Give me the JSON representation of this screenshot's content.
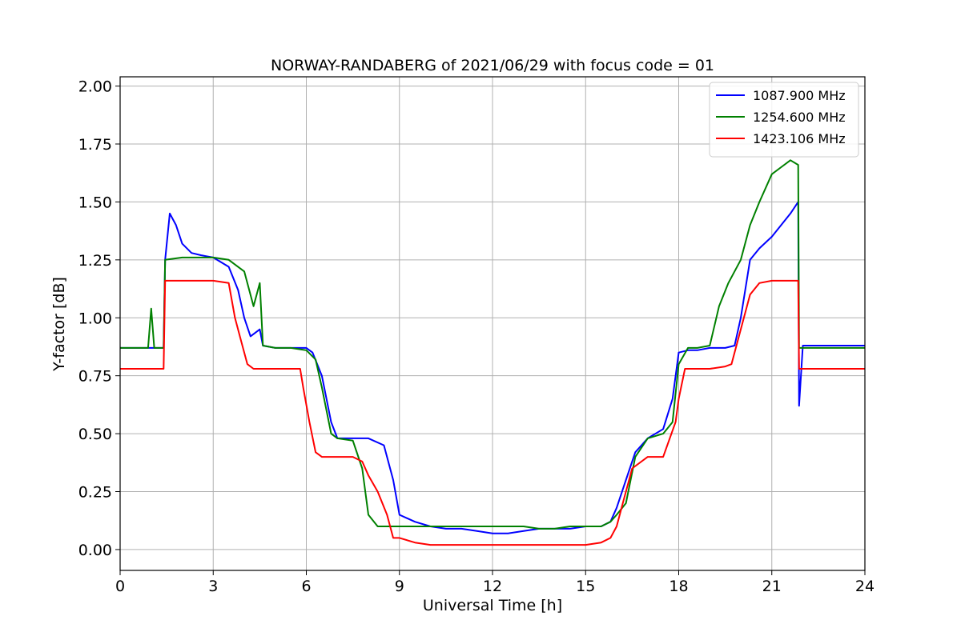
{
  "chart_data": {
    "type": "line",
    "title": "NORWAY-RANDABERG of 2021/06/29 with focus code = 01",
    "xlabel": "Universal Time [h]",
    "ylabel": "Y-factor [dB]",
    "xlim": [
      0,
      24
    ],
    "ylim": [
      -0.09,
      2.04
    ],
    "xticks": [
      0,
      3,
      6,
      9,
      12,
      15,
      18,
      21,
      24
    ],
    "xtick_labels": [
      "0",
      "3",
      "6",
      "9",
      "12",
      "15",
      "18",
      "21",
      "24"
    ],
    "yticks": [
      0.0,
      0.25,
      0.5,
      0.75,
      1.0,
      1.25,
      1.5,
      1.75,
      2.0
    ],
    "ytick_labels": [
      "0.00",
      "0.25",
      "0.50",
      "0.75",
      "1.00",
      "1.25",
      "1.50",
      "1.75",
      "2.00"
    ],
    "grid": true,
    "legend_position": "top-right",
    "series": [
      {
        "name": "1087.900 MHz",
        "color": "#0000ff",
        "x": [
          0,
          1.4,
          1.45,
          1.6,
          1.8,
          2.0,
          2.3,
          2.6,
          3.0,
          3.5,
          3.8,
          4.0,
          4.2,
          4.5,
          4.6,
          5.0,
          5.5,
          6.0,
          6.2,
          6.5,
          6.8,
          7.0,
          7.5,
          8.0,
          8.5,
          8.8,
          9.0,
          9.5,
          10.0,
          10.5,
          11.0,
          11.5,
          12.0,
          12.5,
          13.0,
          13.5,
          14.0,
          14.5,
          15.0,
          15.5,
          15.8,
          16.0,
          16.3,
          16.6,
          17.0,
          17.5,
          17.8,
          18.0,
          18.3,
          18.6,
          19.0,
          19.5,
          19.8,
          20.0,
          20.3,
          20.6,
          21.0,
          21.3,
          21.6,
          21.85,
          21.88,
          22.0,
          22.5,
          23.0,
          24.0
        ],
        "y": [
          0.87,
          0.87,
          1.25,
          1.45,
          1.4,
          1.32,
          1.28,
          1.27,
          1.26,
          1.22,
          1.12,
          1.0,
          0.92,
          0.95,
          0.88,
          0.87,
          0.87,
          0.87,
          0.85,
          0.75,
          0.55,
          0.48,
          0.48,
          0.48,
          0.45,
          0.3,
          0.15,
          0.12,
          0.1,
          0.09,
          0.09,
          0.08,
          0.07,
          0.07,
          0.08,
          0.09,
          0.09,
          0.09,
          0.1,
          0.1,
          0.12,
          0.18,
          0.3,
          0.42,
          0.48,
          0.52,
          0.65,
          0.85,
          0.86,
          0.86,
          0.87,
          0.87,
          0.88,
          1.0,
          1.25,
          1.3,
          1.35,
          1.4,
          1.45,
          1.5,
          0.62,
          0.88,
          0.88,
          0.88,
          0.88
        ]
      },
      {
        "name": "1254.600 MHz",
        "color": "#008000",
        "x": [
          0,
          0.9,
          1.0,
          1.1,
          1.4,
          1.45,
          2.0,
          2.5,
          3.0,
          3.5,
          4.0,
          4.3,
          4.5,
          4.6,
          5.0,
          5.5,
          6.0,
          6.3,
          6.5,
          6.8,
          7.0,
          7.5,
          7.8,
          8.0,
          8.3,
          8.6,
          9.0,
          9.5,
          10.0,
          10.5,
          11.0,
          11.5,
          12.0,
          12.5,
          13.0,
          13.5,
          14.0,
          14.5,
          15.0,
          15.5,
          15.8,
          16.0,
          16.3,
          16.6,
          17.0,
          17.5,
          17.8,
          18.0,
          18.3,
          18.6,
          19.0,
          19.3,
          19.6,
          20.0,
          20.3,
          20.6,
          21.0,
          21.3,
          21.6,
          21.85,
          21.88,
          22.0,
          22.5,
          23.0,
          24.0
        ],
        "y": [
          0.87,
          0.87,
          1.04,
          0.87,
          0.87,
          1.25,
          1.26,
          1.26,
          1.26,
          1.25,
          1.2,
          1.05,
          1.15,
          0.88,
          0.87,
          0.87,
          0.86,
          0.82,
          0.7,
          0.5,
          0.48,
          0.47,
          0.35,
          0.15,
          0.1,
          0.1,
          0.1,
          0.1,
          0.1,
          0.1,
          0.1,
          0.1,
          0.1,
          0.1,
          0.1,
          0.09,
          0.09,
          0.1,
          0.1,
          0.1,
          0.12,
          0.15,
          0.2,
          0.4,
          0.48,
          0.5,
          0.55,
          0.8,
          0.87,
          0.87,
          0.88,
          1.05,
          1.15,
          1.25,
          1.4,
          1.5,
          1.62,
          1.65,
          1.68,
          1.66,
          0.87,
          0.87,
          0.87,
          0.87,
          0.87
        ]
      },
      {
        "name": "1423.106 MHz",
        "color": "#ff0000",
        "x": [
          0,
          1.4,
          1.45,
          2.0,
          2.5,
          3.0,
          3.5,
          3.7,
          3.9,
          4.1,
          4.3,
          5.0,
          5.5,
          5.8,
          5.9,
          6.1,
          6.3,
          6.5,
          7.0,
          7.5,
          7.8,
          8.0,
          8.3,
          8.6,
          8.8,
          9.0,
          9.5,
          10.0,
          10.5,
          11.0,
          11.5,
          12.0,
          12.5,
          13.0,
          13.5,
          14.0,
          14.5,
          15.0,
          15.5,
          15.8,
          16.0,
          16.2,
          16.5,
          17.0,
          17.5,
          17.9,
          18.0,
          18.2,
          18.5,
          19.0,
          19.5,
          19.7,
          20.0,
          20.3,
          20.6,
          21.0,
          21.5,
          21.85,
          21.88,
          22.0,
          22.5,
          23.0,
          24.0
        ],
        "y": [
          0.78,
          0.78,
          1.16,
          1.16,
          1.16,
          1.16,
          1.15,
          1.0,
          0.9,
          0.8,
          0.78,
          0.78,
          0.78,
          0.78,
          0.7,
          0.55,
          0.42,
          0.4,
          0.4,
          0.4,
          0.38,
          0.32,
          0.25,
          0.15,
          0.05,
          0.05,
          0.03,
          0.02,
          0.02,
          0.02,
          0.02,
          0.02,
          0.02,
          0.02,
          0.02,
          0.02,
          0.02,
          0.02,
          0.03,
          0.05,
          0.1,
          0.2,
          0.35,
          0.4,
          0.4,
          0.55,
          0.65,
          0.78,
          0.78,
          0.78,
          0.79,
          0.8,
          0.95,
          1.1,
          1.15,
          1.16,
          1.16,
          1.16,
          0.78,
          0.78,
          0.78,
          0.78,
          0.78
        ]
      }
    ]
  }
}
